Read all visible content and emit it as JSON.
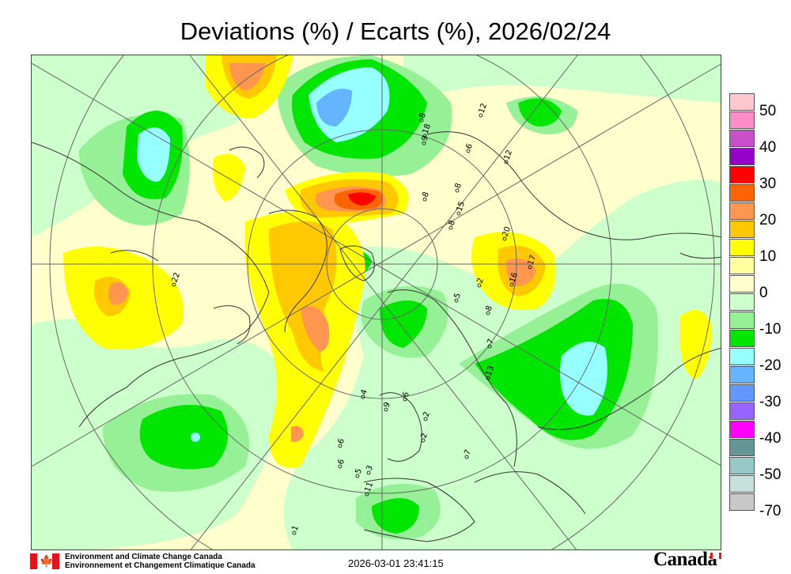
{
  "title": "Deviations (%) / Ecarts (%), 2026/02/24",
  "legend": [
    {
      "label": "50",
      "color": "#ffc8d0"
    },
    {
      "label": "",
      "color": "#ff8cc8"
    },
    {
      "label": "40",
      "color": "#c850c8"
    },
    {
      "label": "",
      "color": "#9600c8"
    },
    {
      "label": "30",
      "color": "#ff0000"
    },
    {
      "label": "",
      "color": "#ff6400"
    },
    {
      "label": "20",
      "color": "#ff9650"
    },
    {
      "label": "",
      "color": "#ffc800"
    },
    {
      "label": "10",
      "color": "#ffff00"
    },
    {
      "label": "",
      "color": "#ffffa0"
    },
    {
      "label": "0",
      "color": "#feffcc"
    },
    {
      "label": "",
      "color": "#ccffcc"
    },
    {
      "label": "-10",
      "color": "#96f096"
    },
    {
      "label": "",
      "color": "#00e600"
    },
    {
      "label": "-20",
      "color": "#96ffff"
    },
    {
      "label": "",
      "color": "#64b4ff"
    },
    {
      "label": "-30",
      "color": "#6496ff"
    },
    {
      "label": "",
      "color": "#9664ff"
    },
    {
      "label": "-40",
      "color": "#ff00ff"
    },
    {
      "label": "",
      "color": "#649696"
    },
    {
      "label": "-50",
      "color": "#96c8c8"
    },
    {
      "label": "",
      "color": "#c8e0dc"
    },
    {
      "label": "-70",
      "color": "#c8c8c8"
    }
  ],
  "station_values": [
    "8",
    "9",
    "12",
    "6",
    "15",
    "8",
    "12",
    "20",
    "17",
    "16",
    "2",
    "5",
    "8",
    "7",
    "13",
    "4",
    "6",
    "2",
    "6",
    "9",
    "2",
    "6",
    "5",
    "3",
    "11",
    "7",
    "8",
    "18",
    "22",
    "8",
    "1"
  ],
  "footer": {
    "org_en": "Environment and Climate Change Canada",
    "org_fr": "Environnement et Changement Climatique Canada",
    "timestamp": "2026-03-01 23:41:15",
    "wordmark": "Canada"
  }
}
